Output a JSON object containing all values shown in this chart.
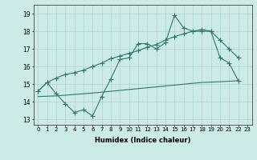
{
  "xlabel": "Humidex (Indice chaleur)",
  "background_color": "#cceae8",
  "grid_color": "#aad4d0",
  "line_color": "#2a7a6e",
  "xlim": [
    -0.5,
    23.5
  ],
  "ylim": [
    12.7,
    19.5
  ],
  "yticks": [
    13,
    14,
    15,
    16,
    17,
    18,
    19
  ],
  "xticks": [
    0,
    1,
    2,
    3,
    4,
    5,
    6,
    7,
    8,
    9,
    10,
    11,
    12,
    13,
    14,
    15,
    16,
    17,
    18,
    19,
    20,
    21,
    22,
    23
  ],
  "main_line_x": [
    0,
    1,
    2,
    3,
    4,
    5,
    6,
    7,
    8,
    9,
    10,
    11,
    12,
    13,
    14,
    15,
    16,
    17,
    18,
    19,
    20,
    21,
    22
  ],
  "main_line_y": [
    14.6,
    15.1,
    14.45,
    13.9,
    13.4,
    13.55,
    13.2,
    14.3,
    15.3,
    16.4,
    16.5,
    17.3,
    17.3,
    17.0,
    17.35,
    18.9,
    18.2,
    18.0,
    18.0,
    18.0,
    16.5,
    16.2,
    15.2
  ],
  "upper_line_x": [
    0,
    1,
    2,
    3,
    4,
    5,
    6,
    7,
    8,
    9,
    10,
    11,
    12,
    13,
    14,
    15,
    16,
    17,
    18,
    19,
    20,
    21,
    22
  ],
  "upper_line_y": [
    14.6,
    15.1,
    15.35,
    15.55,
    15.65,
    15.8,
    16.0,
    16.2,
    16.45,
    16.6,
    16.75,
    16.9,
    17.1,
    17.25,
    17.5,
    17.7,
    17.85,
    18.0,
    18.1,
    18.0,
    17.5,
    17.0,
    16.5
  ],
  "lower_line_x": [
    0,
    1,
    2,
    3,
    4,
    5,
    6,
    7,
    8,
    9,
    10,
    11,
    12,
    13,
    14,
    15,
    16,
    17,
    18,
    19,
    20,
    21,
    22
  ],
  "lower_line_y": [
    14.3,
    14.32,
    14.34,
    14.38,
    14.42,
    14.46,
    14.5,
    14.55,
    14.6,
    14.65,
    14.7,
    14.75,
    14.8,
    14.85,
    14.9,
    14.95,
    15.0,
    15.05,
    15.1,
    15.12,
    15.14,
    15.17,
    15.2
  ],
  "lw": 0.8,
  "ms": 2.5
}
